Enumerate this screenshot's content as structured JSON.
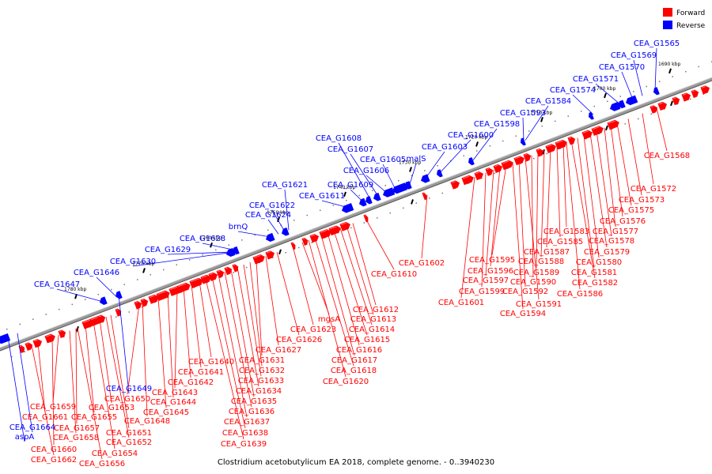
{
  "caption": "Clostridium acetobutylicum EA 2018, complete genome. - 0..3940230",
  "legend": [
    {
      "label": "Forward",
      "color": "#ff0000"
    },
    {
      "label": "Reverse",
      "color": "#0000ff"
    }
  ],
  "colors": {
    "forward": "#ff0000",
    "reverse": "#0000ff",
    "backbone": "#888888",
    "text": "#000000"
  },
  "ticks": [
    "1690 kbp",
    "1700 kbp",
    "1710 kbp",
    "1720 kbp",
    "1730 kbp",
    "1740 kbp",
    "1750 kbp",
    "1760 kbp",
    "1770 kbp",
    "1780 kbp"
  ],
  "reverse_labels": [
    "CEA_G1565",
    "CEA_G1569",
    "CEA_G1570",
    "CEA_G1571",
    "CEA_G1574",
    "CEA_G1584",
    "CEA_G1593",
    "CEA_G1598",
    "CEA_G1600",
    "CEA_G1603",
    "malS",
    "CEA_G1605",
    "CEA_G1606",
    "CEA_G1607",
    "CEA_G1608",
    "CEA_G1609",
    "CEA_G1611",
    "CEA_G1621",
    "CEA_G1622",
    "CEA_G1624",
    "brnQ",
    "CEA_G1628",
    "CEA_G1629",
    "CEA_G1630",
    "CEA_G1646",
    "CEA_G1647",
    "CEA_G1649",
    "CEA_G1664",
    "aspA"
  ],
  "forward_labels": [
    "CEA_G1568",
    "CEA_G1572",
    "CEA_G1573",
    "CEA_G1575",
    "CEA_G1576",
    "CEA_G1577",
    "CEA_G1578",
    "CEA_G1579",
    "CEA_G1580",
    "CEA_G1581",
    "CEA_G1582",
    "CEA_G1583",
    "CEA_G1585",
    "CEA_G1586",
    "CEA_G1587",
    "CEA_G1588",
    "CEA_G1589",
    "CEA_G1590",
    "CEA_G1591",
    "CEA_G1592",
    "CEA_G1594",
    "CEA_G1595",
    "CEA_G1596",
    "CEA_G1597",
    "CEA_G1599",
    "CEA_G1601",
    "CEA_G1602",
    "CEA_G1610",
    "CEA_G1612",
    "CEA_G1613",
    "CEA_G1614",
    "CEA_G1615",
    "CEA_G1616",
    "CEA_G1617",
    "CEA_G1618",
    "CEA_G1620",
    "mgsA",
    "CEA_G1623",
    "CEA_G1626",
    "CEA_G1627",
    "CEA_G1631",
    "CEA_G1632",
    "CEA_G1633",
    "CEA_G1634",
    "CEA_G1635",
    "CEA_G1636",
    "CEA_G1637",
    "CEA_G1638",
    "CEA_G1639",
    "CEA_G1640",
    "CEA_G1641",
    "CEA_G1642",
    "CEA_G1643",
    "CEA_G1644",
    "CEA_G1645",
    "CEA_G1648",
    "CEA_G1650",
    "CEA_G1651",
    "CEA_G1652",
    "CEA_G1653",
    "CEA_G1654",
    "CEA_G1655",
    "CEA_G1656",
    "CEA_G1657",
    "CEA_G1658",
    "CEA_G1659",
    "CEA_G1660",
    "CEA_G1661",
    "CEA_G1662"
  ]
}
